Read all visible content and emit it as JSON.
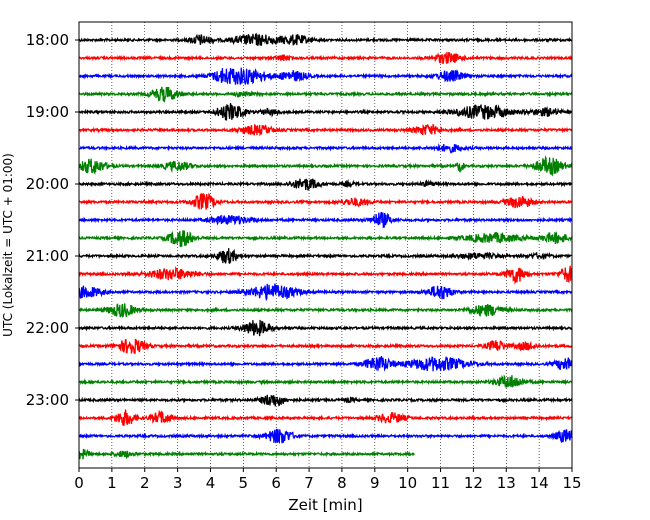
{
  "chart_data": {
    "type": "line",
    "title": "",
    "xlabel": "Zeit  [min]",
    "ylabel": "UTC (Lokalzeit = UTC + 01:00)",
    "xlim": [
      0,
      15
    ],
    "x_ticks": [
      "0",
      "1",
      "2",
      "3",
      "4",
      "5",
      "6",
      "7",
      "8",
      "9",
      "10",
      "11",
      "12",
      "13",
      "14",
      "15"
    ],
    "y_ticks": [
      {
        "label": "18:00",
        "row": 0
      },
      {
        "label": "19:00",
        "row": 4
      },
      {
        "label": "20:00",
        "row": 8
      },
      {
        "label": "21:00",
        "row": 12
      },
      {
        "label": "22:00",
        "row": 16
      },
      {
        "label": "23:00",
        "row": 20
      }
    ],
    "grid": {
      "vertical": true,
      "style": "dotted"
    },
    "row_colors": [
      "#000000",
      "#ff0000",
      "#0000ff",
      "#008000"
    ],
    "series": [
      {
        "end": 15,
        "bursts": [
          [
            3.7,
            0.3,
            0.55
          ],
          [
            5.4,
            0.7,
            0.6
          ],
          [
            6.6,
            0.4,
            0.5
          ]
        ]
      },
      {
        "end": 15,
        "bursts": [
          [
            6.2,
            0.2,
            0.3
          ],
          [
            11.2,
            0.4,
            0.6
          ]
        ]
      },
      {
        "end": 15,
        "bursts": [
          [
            4.6,
            0.5,
            1.0
          ],
          [
            5.3,
            0.5,
            0.55
          ],
          [
            6.5,
            0.4,
            0.55
          ],
          [
            11.3,
            0.4,
            0.6
          ]
        ]
      },
      {
        "end": 15,
        "bursts": [
          [
            2.6,
            0.4,
            0.8
          ],
          [
            5.0,
            0.3,
            0.2
          ]
        ]
      },
      {
        "end": 15,
        "bursts": [
          [
            4.6,
            0.4,
            0.9
          ],
          [
            5.8,
            0.3,
            0.3
          ],
          [
            12.3,
            0.8,
            0.75
          ],
          [
            14.2,
            0.4,
            0.4
          ]
        ]
      },
      {
        "end": 15,
        "bursts": [
          [
            5.4,
            0.5,
            0.5
          ],
          [
            10.6,
            0.4,
            0.55
          ]
        ]
      },
      {
        "end": 15,
        "bursts": [
          [
            11.3,
            0.4,
            0.4
          ]
        ]
      },
      {
        "end": 15,
        "bursts": [
          [
            0.4,
            0.4,
            0.8
          ],
          [
            3.0,
            0.4,
            0.5
          ],
          [
            11.6,
            0.1,
            0.6
          ],
          [
            14.3,
            0.4,
            0.95
          ]
        ]
      },
      {
        "end": 15,
        "bursts": [
          [
            6.9,
            0.4,
            0.65
          ],
          [
            8.2,
            0.2,
            0.2
          ],
          [
            10.6,
            0.2,
            0.25
          ]
        ]
      },
      {
        "end": 15,
        "bursts": [
          [
            3.8,
            0.35,
            0.9
          ],
          [
            8.4,
            0.4,
            0.4
          ],
          [
            13.4,
            0.4,
            0.65
          ]
        ]
      },
      {
        "end": 15,
        "bursts": [
          [
            4.6,
            0.6,
            0.45
          ],
          [
            9.2,
            0.3,
            0.8
          ]
        ]
      },
      {
        "end": 15,
        "bursts": [
          [
            3.1,
            0.35,
            0.95
          ],
          [
            12.6,
            0.8,
            0.5
          ],
          [
            14.5,
            0.4,
            0.55
          ]
        ]
      },
      {
        "end": 15,
        "bursts": [
          [
            4.5,
            0.3,
            0.8
          ],
          [
            12.1,
            0.6,
            0.3
          ],
          [
            14.0,
            0.3,
            0.25
          ]
        ]
      },
      {
        "end": 15,
        "bursts": [
          [
            2.8,
            0.7,
            0.6
          ],
          [
            13.3,
            0.3,
            0.9
          ],
          [
            14.9,
            0.25,
            0.9
          ]
        ]
      },
      {
        "end": 15,
        "bursts": [
          [
            0.2,
            0.5,
            0.6
          ],
          [
            5.9,
            0.7,
            0.85
          ],
          [
            11.0,
            0.35,
            0.8
          ]
        ]
      },
      {
        "end": 15,
        "bursts": [
          [
            1.3,
            0.4,
            0.75
          ],
          [
            12.4,
            0.5,
            0.6
          ]
        ]
      },
      {
        "end": 15,
        "bursts": [
          [
            5.4,
            0.4,
            0.85
          ]
        ]
      },
      {
        "end": 15,
        "bursts": [
          [
            1.6,
            0.4,
            0.85
          ],
          [
            12.7,
            0.3,
            0.6
          ],
          [
            13.6,
            0.3,
            0.4
          ]
        ]
      },
      {
        "end": 15,
        "bursts": [
          [
            9.1,
            0.4,
            0.8
          ],
          [
            10.9,
            0.9,
            0.75
          ],
          [
            14.8,
            0.3,
            0.7
          ]
        ]
      },
      {
        "end": 15,
        "bursts": [
          [
            13.1,
            0.4,
            0.7
          ]
        ]
      },
      {
        "end": 15,
        "bursts": [
          [
            5.9,
            0.35,
            0.7
          ],
          [
            8.2,
            0.2,
            0.2
          ]
        ]
      },
      {
        "end": 15,
        "bursts": [
          [
            1.4,
            0.3,
            0.85
          ],
          [
            2.5,
            0.3,
            0.65
          ],
          [
            9.5,
            0.4,
            0.55
          ]
        ]
      },
      {
        "end": 15,
        "bursts": [
          [
            6.1,
            0.4,
            0.8
          ],
          [
            14.8,
            0.3,
            0.7
          ]
        ]
      },
      {
        "end": 10.2,
        "bursts": [
          [
            0.1,
            0.2,
            0.5
          ],
          [
            1.4,
            0.3,
            0.3
          ]
        ]
      }
    ]
  }
}
